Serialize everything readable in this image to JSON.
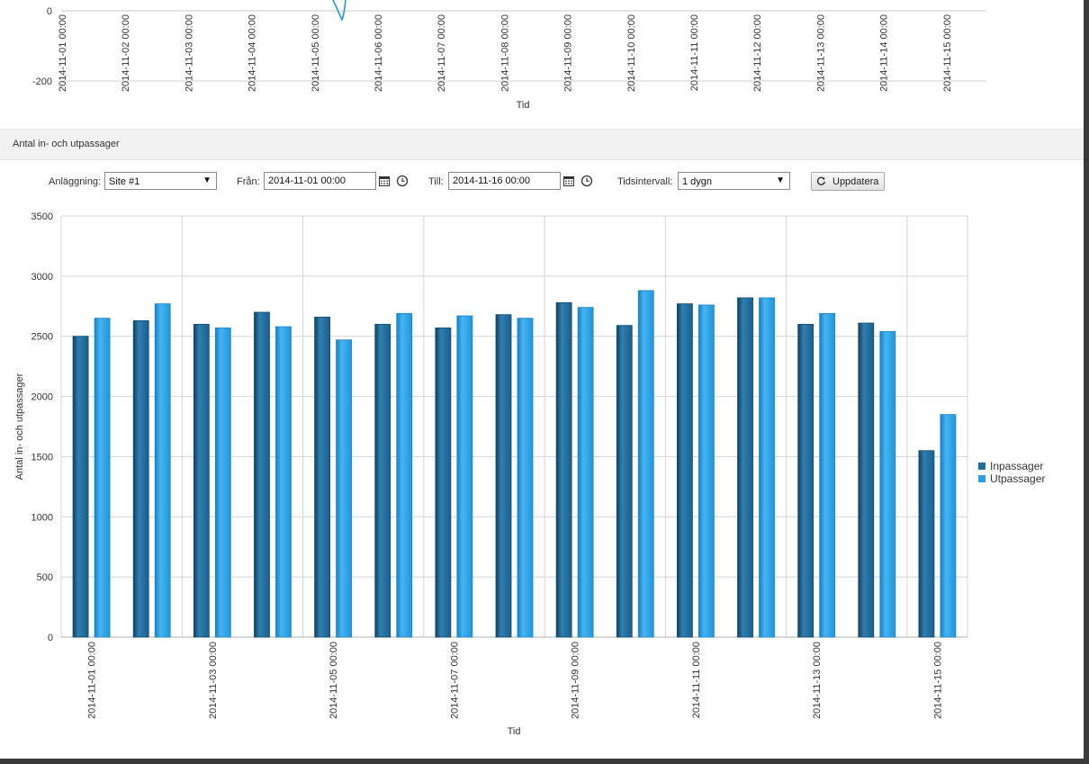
{
  "top_chart": {
    "ytick_labels": [
      "0",
      "-200"
    ],
    "xtick_labels": [
      "2014-11-01 00:00",
      "2014-11-02 00:00",
      "2014-11-03 00:00",
      "2014-11-04 00:00",
      "2014-11-05 00:00",
      "2014-11-06 00:00",
      "2014-11-07 00:00",
      "2014-11-08 00:00",
      "2014-11-09 00:00",
      "2014-11-10 00:00",
      "2014-11-11 00:00",
      "2014-11-12 00:00",
      "2014-11-13 00:00",
      "2014-11-14 00:00",
      "2014-11-15 00:00"
    ],
    "xlabel": "Tid",
    "line_color": "#1a8fd6"
  },
  "section": {
    "title": "Antal in- och utpassager"
  },
  "controls": {
    "site_label": "Anläggning:",
    "site_value": "Site #1",
    "from_label": "Från:",
    "from_value": "2014-11-01 00:00",
    "to_label": "Till:",
    "to_value": "2014-11-16 00:00",
    "interval_label": "Tidsintervall:",
    "interval_value": "1 dygn",
    "update_label": "Uppdatera"
  },
  "chart_data": {
    "type": "bar",
    "xlabel": "Tid",
    "ylabel": "Antal in- och utpassager",
    "ylim": [
      0,
      3500
    ],
    "yticks": [
      0,
      500,
      1000,
      1500,
      2000,
      2500,
      3000,
      3500
    ],
    "grid": true,
    "legend_position": "right",
    "categories": [
      "2014-11-01 00:00",
      "2014-11-02 00:00",
      "2014-11-03 00:00",
      "2014-11-04 00:00",
      "2014-11-05 00:00",
      "2014-11-06 00:00",
      "2014-11-07 00:00",
      "2014-11-08 00:00",
      "2014-11-09 00:00",
      "2014-11-10 00:00",
      "2014-11-11 00:00",
      "2014-11-12 00:00",
      "2014-11-13 00:00",
      "2014-11-14 00:00",
      "2014-11-15 00:00"
    ],
    "xtick_labels": [
      "2014-11-01 00:00",
      "2014-11-03 00:00",
      "2014-11-05 00:00",
      "2014-11-07 00:00",
      "2014-11-09 00:00",
      "2014-11-11 00:00",
      "2014-11-13 00:00",
      "2014-11-15 00:00"
    ],
    "series": [
      {
        "name": "Inpassager",
        "color": "#1f6fa3",
        "values": [
          2500,
          2630,
          2600,
          2700,
          2660,
          2600,
          2570,
          2680,
          2780,
          2590,
          2770,
          2820,
          2600,
          2610,
          1550
        ]
      },
      {
        "name": "Utpassager",
        "color": "#2a9fe6",
        "values": [
          2650,
          2770,
          2570,
          2580,
          2470,
          2690,
          2670,
          2650,
          2740,
          2880,
          2760,
          2820,
          2690,
          2540,
          1850
        ]
      }
    ]
  }
}
